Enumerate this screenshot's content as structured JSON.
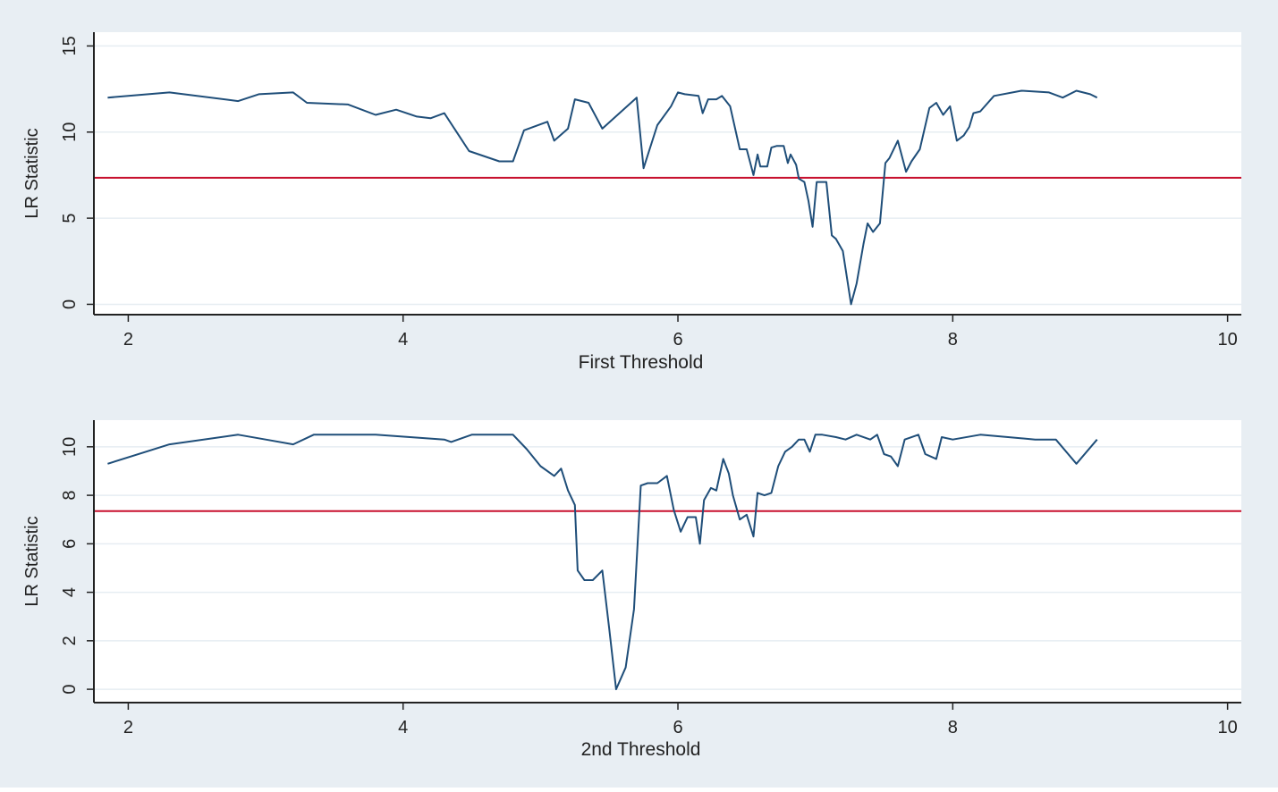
{
  "colors": {
    "outer_background": "#e8eef3",
    "plot_background": "#ffffff",
    "grid": "#e6edf2",
    "axis": "#222222",
    "series_line": "#1f4e79",
    "critical_line": "#c8102e"
  },
  "chart_data": [
    {
      "type": "line",
      "xlabel": "First Threshold",
      "ylabel": "LR Statistic",
      "xlim": [
        1.75,
        10.1
      ],
      "ylim": [
        -0.6,
        15.8
      ],
      "xticks": [
        2,
        4,
        6,
        8,
        10
      ],
      "yticks": [
        0,
        5,
        10,
        15
      ],
      "grid": true,
      "legend": "none",
      "hline": 7.35,
      "series": [
        {
          "x": [
            1.85,
            2.3,
            2.8,
            2.95,
            3.2,
            3.3,
            3.6,
            3.8,
            3.95,
            4.1,
            4.2,
            4.3,
            4.48,
            4.7,
            4.8,
            4.88,
            5.05,
            5.1,
            5.2,
            5.25,
            5.35,
            5.45,
            5.7,
            5.75,
            5.85,
            5.95,
            6.0,
            6.05,
            6.15,
            6.18,
            6.22,
            6.28,
            6.32,
            6.38,
            6.45,
            6.5,
            6.53,
            6.55,
            6.58,
            6.6,
            6.65,
            6.68,
            6.72,
            6.77,
            6.8,
            6.82,
            6.86,
            6.88,
            6.92,
            6.95,
            6.98,
            7.01,
            7.04,
            7.08,
            7.12,
            7.15,
            7.2,
            7.26,
            7.3,
            7.35,
            7.38,
            7.42,
            7.47,
            7.51,
            7.54,
            7.6,
            7.66,
            7.7,
            7.76,
            7.83,
            7.88,
            7.93,
            7.98,
            8.03,
            8.08,
            8.12,
            8.15,
            8.2,
            8.3,
            8.5,
            8.7,
            8.8,
            8.9,
            9.0,
            9.05
          ],
          "y": [
            12.0,
            12.3,
            11.8,
            12.2,
            12.3,
            11.7,
            11.6,
            11.0,
            11.3,
            10.9,
            10.8,
            11.1,
            8.9,
            8.3,
            8.3,
            10.1,
            10.6,
            9.5,
            10.2,
            11.9,
            11.7,
            10.2,
            12.0,
            7.9,
            10.4,
            11.5,
            12.3,
            12.2,
            12.1,
            11.1,
            11.9,
            11.9,
            12.1,
            11.5,
            9.0,
            9.0,
            8.1,
            7.5,
            8.7,
            8.0,
            8.0,
            9.1,
            9.2,
            9.2,
            8.2,
            8.7,
            8.1,
            7.3,
            7.1,
            6.0,
            4.5,
            7.1,
            7.1,
            7.1,
            4.0,
            3.8,
            3.1,
            0.0,
            1.2,
            3.5,
            4.7,
            4.2,
            4.7,
            8.2,
            8.5,
            9.5,
            7.7,
            8.3,
            9.0,
            11.4,
            11.7,
            11.0,
            11.5,
            9.5,
            9.8,
            10.3,
            11.1,
            11.2,
            12.1,
            12.4,
            12.3,
            12.0,
            12.4,
            12.2,
            12.0
          ]
        }
      ]
    },
    {
      "type": "line",
      "xlabel": "2nd Threshold",
      "ylabel": "LR Statistic",
      "xlim": [
        1.75,
        10.1
      ],
      "ylim": [
        -0.55,
        11.1
      ],
      "xticks": [
        2,
        4,
        6,
        8,
        10
      ],
      "yticks": [
        0,
        2,
        4,
        6,
        8,
        10
      ],
      "grid": true,
      "legend": "none",
      "hline": 7.35,
      "series": [
        {
          "x": [
            1.85,
            2.3,
            2.8,
            3.0,
            3.2,
            3.35,
            3.8,
            4.3,
            4.35,
            4.5,
            4.8,
            4.9,
            5.0,
            5.1,
            5.15,
            5.2,
            5.25,
            5.27,
            5.32,
            5.38,
            5.45,
            5.5,
            5.55,
            5.62,
            5.68,
            5.73,
            5.78,
            5.85,
            5.92,
            5.97,
            6.02,
            6.07,
            6.13,
            6.16,
            6.19,
            6.24,
            6.28,
            6.33,
            6.37,
            6.4,
            6.45,
            6.5,
            6.55,
            6.58,
            6.63,
            6.68,
            6.73,
            6.78,
            6.83,
            6.88,
            6.92,
            6.96,
            7.0,
            7.05,
            7.15,
            7.22,
            7.3,
            7.4,
            7.45,
            7.5,
            7.55,
            7.6,
            7.65,
            7.75,
            7.8,
            7.88,
            7.92,
            8.0,
            8.2,
            8.6,
            8.75,
            8.9,
            9.05
          ],
          "y": [
            9.3,
            10.1,
            10.5,
            10.3,
            10.1,
            10.5,
            10.5,
            10.3,
            10.2,
            10.5,
            10.5,
            9.9,
            9.2,
            8.8,
            9.1,
            8.2,
            7.6,
            4.9,
            4.5,
            4.5,
            4.9,
            2.5,
            0.0,
            0.9,
            3.3,
            8.4,
            8.5,
            8.5,
            8.8,
            7.4,
            6.5,
            7.1,
            7.1,
            6.0,
            7.8,
            8.3,
            8.2,
            9.5,
            8.9,
            8.0,
            7.0,
            7.2,
            6.3,
            8.1,
            8.0,
            8.1,
            9.2,
            9.8,
            10.0,
            10.3,
            10.3,
            9.8,
            10.5,
            10.5,
            10.4,
            10.3,
            10.5,
            10.3,
            10.5,
            9.7,
            9.6,
            9.2,
            10.3,
            10.5,
            9.7,
            9.5,
            10.4,
            10.3,
            10.5,
            10.3,
            10.3,
            9.3,
            10.3
          ]
        }
      ]
    }
  ]
}
